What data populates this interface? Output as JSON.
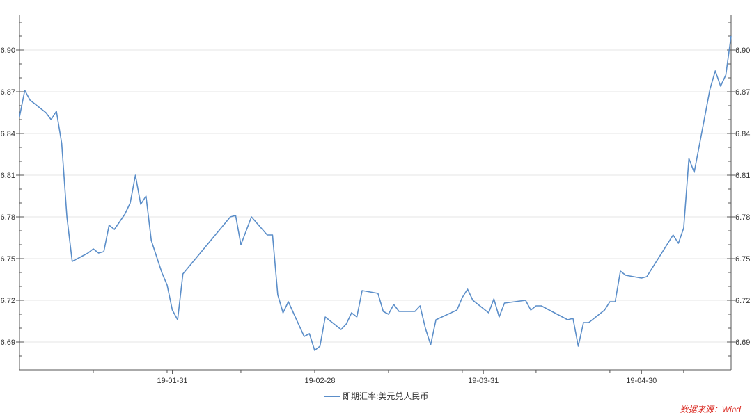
{
  "chart_data": {
    "type": "line",
    "y_ticks": [
      6.69,
      6.72,
      6.75,
      6.78,
      6.81,
      6.84,
      6.87,
      6.9
    ],
    "y_tick_labels": [
      "6.69",
      "6.72",
      "6.75",
      "6.78",
      "6.81",
      "6.84",
      "6.87",
      "6.90"
    ],
    "ylim": [
      6.67,
      6.925
    ],
    "x_range": [
      "2019-01-02",
      "2019-05-17"
    ],
    "x_tick_dates": [
      "2019-01-31",
      "2019-02-28",
      "2019-03-31",
      "2019-04-30"
    ],
    "x_tick_labels": [
      "19-01-31",
      "19-02-28",
      "19-03-31",
      "19-04-30"
    ],
    "grid": true,
    "legend_position": "bottom-center",
    "series": [
      {
        "name": "即期汇率:美元兑人民币",
        "color": "#5b8ec9",
        "points": [
          [
            "2019-01-02",
            6.852
          ],
          [
            "2019-01-03",
            6.871
          ],
          [
            "2019-01-04",
            6.864
          ],
          [
            "2019-01-07",
            6.855
          ],
          [
            "2019-01-08",
            6.85
          ],
          [
            "2019-01-09",
            6.856
          ],
          [
            "2019-01-10",
            6.833
          ],
          [
            "2019-01-11",
            6.78
          ],
          [
            "2019-01-12",
            6.748
          ],
          [
            "2019-01-15",
            6.754
          ],
          [
            "2019-01-16",
            6.757
          ],
          [
            "2019-01-17",
            6.754
          ],
          [
            "2019-01-18",
            6.755
          ],
          [
            "2019-01-19",
            6.774
          ],
          [
            "2019-01-20",
            6.771
          ],
          [
            "2019-01-22",
            6.782
          ],
          [
            "2019-01-23",
            6.79
          ],
          [
            "2019-01-24",
            6.81
          ],
          [
            "2019-01-25",
            6.789
          ],
          [
            "2019-01-26",
            6.795
          ],
          [
            "2019-01-27",
            6.763
          ],
          [
            "2019-01-29",
            6.74
          ],
          [
            "2019-01-30",
            6.731
          ],
          [
            "2019-01-31",
            6.713
          ],
          [
            "2019-02-01",
            6.706
          ],
          [
            "2019-02-02",
            6.739
          ],
          [
            "2019-02-11",
            6.78
          ],
          [
            "2019-02-12",
            6.781
          ],
          [
            "2019-02-13",
            6.76
          ],
          [
            "2019-02-15",
            6.78
          ],
          [
            "2019-02-18",
            6.767
          ],
          [
            "2019-02-19",
            6.767
          ],
          [
            "2019-02-20",
            6.724
          ],
          [
            "2019-02-21",
            6.711
          ],
          [
            "2019-02-22",
            6.719
          ],
          [
            "2019-02-25",
            6.694
          ],
          [
            "2019-02-26",
            6.696
          ],
          [
            "2019-02-27",
            6.684
          ],
          [
            "2019-02-28",
            6.687
          ],
          [
            "2019-03-01",
            6.708
          ],
          [
            "2019-03-04",
            6.699
          ],
          [
            "2019-03-05",
            6.703
          ],
          [
            "2019-03-06",
            6.711
          ],
          [
            "2019-03-07",
            6.708
          ],
          [
            "2019-03-08",
            6.727
          ],
          [
            "2019-03-11",
            6.725
          ],
          [
            "2019-03-12",
            6.712
          ],
          [
            "2019-03-13",
            6.71
          ],
          [
            "2019-03-14",
            6.717
          ],
          [
            "2019-03-15",
            6.712
          ],
          [
            "2019-03-18",
            6.712
          ],
          [
            "2019-03-19",
            6.716
          ],
          [
            "2019-03-20",
            6.7
          ],
          [
            "2019-03-21",
            6.688
          ],
          [
            "2019-03-22",
            6.706
          ],
          [
            "2019-03-26",
            6.713
          ],
          [
            "2019-03-27",
            6.722
          ],
          [
            "2019-03-28",
            6.728
          ],
          [
            "2019-03-29",
            6.72
          ],
          [
            "2019-04-01",
            6.711
          ],
          [
            "2019-04-02",
            6.721
          ],
          [
            "2019-04-03",
            6.708
          ],
          [
            "2019-04-04",
            6.718
          ],
          [
            "2019-04-08",
            6.72
          ],
          [
            "2019-04-09",
            6.713
          ],
          [
            "2019-04-10",
            6.716
          ],
          [
            "2019-04-11",
            6.716
          ],
          [
            "2019-04-12",
            6.714
          ],
          [
            "2019-04-16",
            6.706
          ],
          [
            "2019-04-17",
            6.707
          ],
          [
            "2019-04-18",
            6.687
          ],
          [
            "2019-04-19",
            6.704
          ],
          [
            "2019-04-20",
            6.704
          ],
          [
            "2019-04-23",
            6.713
          ],
          [
            "2019-04-24",
            6.719
          ],
          [
            "2019-04-25",
            6.719
          ],
          [
            "2019-04-26",
            6.741
          ],
          [
            "2019-04-27",
            6.738
          ],
          [
            "2019-04-30",
            6.736
          ],
          [
            "2019-05-01",
            6.737
          ],
          [
            "2019-05-06",
            6.767
          ],
          [
            "2019-05-07",
            6.761
          ],
          [
            "2019-05-08",
            6.772
          ],
          [
            "2019-05-09",
            6.822
          ],
          [
            "2019-05-10",
            6.812
          ],
          [
            "2019-05-13",
            6.872
          ],
          [
            "2019-05-14",
            6.885
          ],
          [
            "2019-05-15",
            6.874
          ],
          [
            "2019-05-16",
            6.882
          ],
          [
            "2019-05-17",
            6.91
          ]
        ]
      }
    ]
  },
  "source_text": "数据来源：Wind"
}
